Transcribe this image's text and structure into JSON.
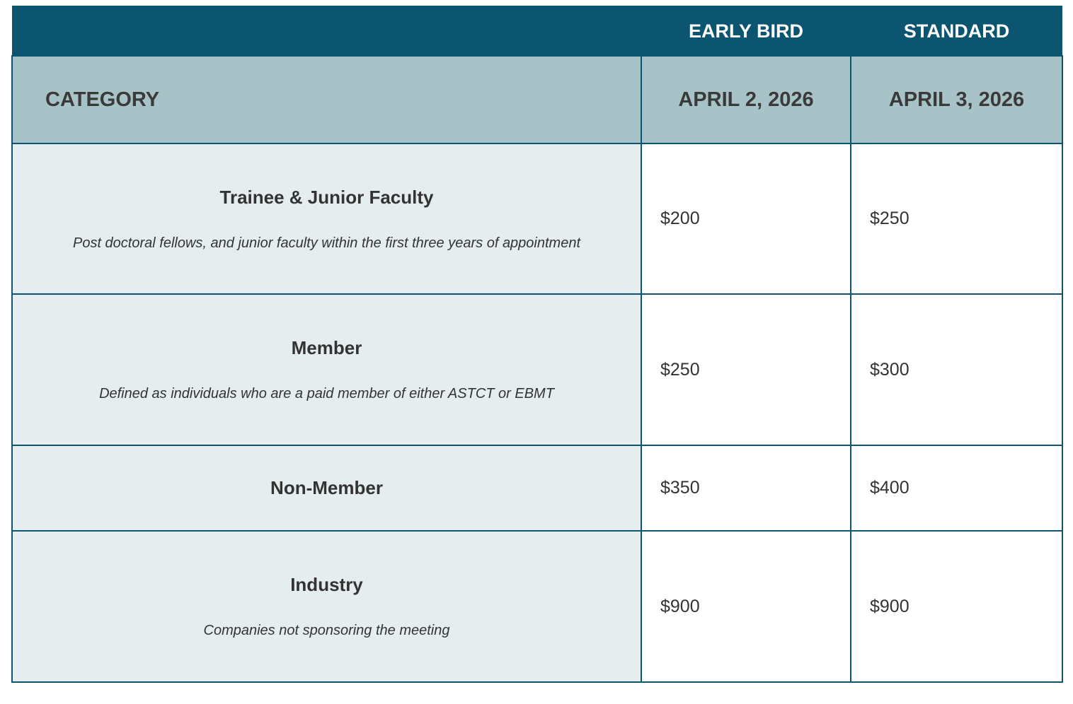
{
  "header": {
    "columns": [
      "EARLY BIRD",
      "STANDARD"
    ],
    "category_label": "CATEGORY",
    "dates": [
      "APRIL 2, 2026",
      "APRIL 3, 2026"
    ]
  },
  "table": {
    "rows": [
      {
        "name": "Trainee & Junior Faculty",
        "description": "Post doctoral fellows, and junior faculty within the first three years of appointment",
        "prices": [
          "$200",
          "$250"
        ]
      },
      {
        "name": "Member",
        "description": "Defined as individuals who are a paid member of either ASTCT or EBMT",
        "prices": [
          "$250",
          "$300"
        ]
      },
      {
        "name": "Non-Member",
        "prices": [
          "$350",
          "$400"
        ]
      },
      {
        "name": "Industry",
        "description": "Companies not sponsoring the meeting",
        "prices": [
          "$900",
          "$900"
        ]
      }
    ]
  }
}
